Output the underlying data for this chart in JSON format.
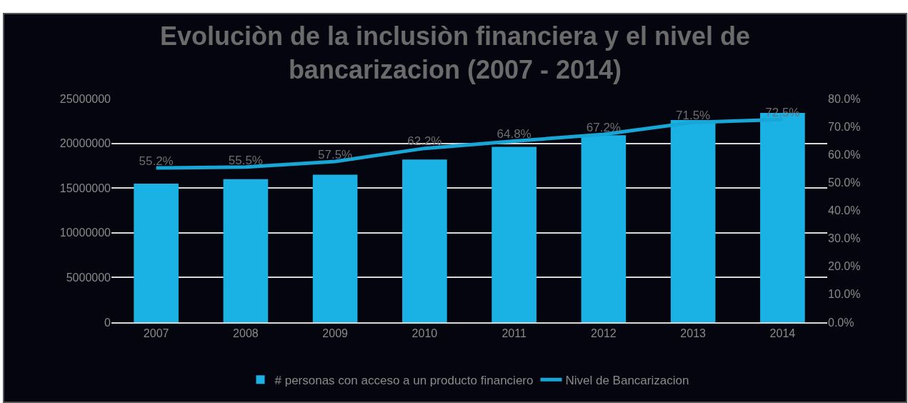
{
  "chart_data": {
    "type": "bar",
    "title": "Evoluciòn de la inclusiòn financiera y el nivel de bancarizacion (2007 - 2014)",
    "categories": [
      "2007",
      "2008",
      "2009",
      "2010",
      "2011",
      "2012",
      "2013",
      "2014"
    ],
    "series": [
      {
        "name": "# personas con acceso a un producto financiero",
        "color": "#1ab2e4",
        "values": [
          15500000,
          16000000,
          16500000,
          18200000,
          19600000,
          20900000,
          22600000,
          23400000
        ]
      },
      {
        "name": "Nivel de Bancarizacion",
        "type": "line",
        "axis": "y2",
        "color": "#17a6d6",
        "values": [
          55.2,
          55.5,
          57.5,
          62.2,
          64.8,
          67.2,
          71.5,
          72.5
        ],
        "value_labels": [
          "55.2%",
          "55.5%",
          "57.5%",
          "62.2%",
          "64.8%",
          "67.2%",
          "71.5%",
          "72.5%"
        ]
      }
    ],
    "ylim": [
      0,
      25000000
    ],
    "yticks": [
      0,
      5000000,
      10000000,
      15000000,
      20000000,
      25000000
    ],
    "y2lim": [
      0,
      80
    ],
    "y2ticks": [
      {
        "value": 0,
        "label": "0.0%"
      },
      {
        "value": 10,
        "label": "10.0%"
      },
      {
        "value": 20,
        "label": "20.0%"
      },
      {
        "value": 30,
        "label": "30.0%"
      },
      {
        "value": 40,
        "label": "40.0%"
      },
      {
        "value": 50,
        "label": "50.0%"
      },
      {
        "value": 60,
        "label": "60.0%"
      },
      {
        "value": 70,
        "label": "70.0%"
      },
      {
        "value": 80,
        "label": "80.0%"
      }
    ],
    "grid": "y",
    "legend": "bottom",
    "marker": "none",
    "line_style": "solid"
  }
}
